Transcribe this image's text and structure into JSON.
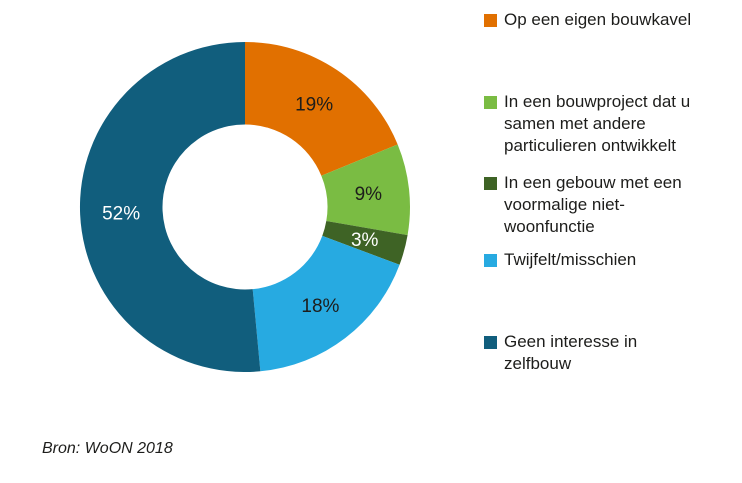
{
  "chart_data": {
    "type": "pie",
    "subtype": "donut",
    "title": "",
    "unit": "%",
    "direction": "clockwise",
    "start_angle": "top",
    "legend_position": "right",
    "source": "Bron: WoON 2018",
    "segments": [
      {
        "label": "Op een eigen bouwkavel",
        "value": 19,
        "display": "19%",
        "color": "#e17000",
        "label_color": "#1d1d1b"
      },
      {
        "label": "In een bouwproject dat u\nsamen met andere\nparticulieren ontwikkelt",
        "value": 9,
        "display": "9%",
        "color": "#7abc43",
        "label_color": "#1d1d1b"
      },
      {
        "label": "In een gebouw met een\nvoormalige niet-\nwoonfunctie",
        "value": 3,
        "display": "3%",
        "color": "#3e6325",
        "label_color": "#ffffff"
      },
      {
        "label": "Twijfelt/misschien",
        "value": 18,
        "display": "18%",
        "color": "#27aae1",
        "label_color": "#1d1d1b"
      },
      {
        "label": "Geen interesse in\nzelfbouw",
        "value": 52,
        "display": "52%",
        "color": "#115e7d",
        "label_color": "#ffffff"
      }
    ]
  }
}
